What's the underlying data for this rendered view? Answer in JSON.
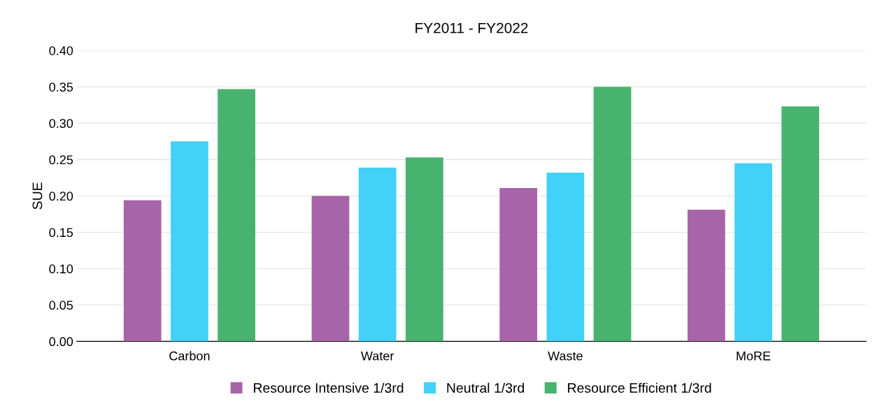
{
  "chart_data": {
    "type": "bar",
    "title": "FY2011 - FY2022",
    "ylabel": "SUE",
    "categories": [
      "Carbon",
      "Water",
      "Waste",
      "MoRE"
    ],
    "series": [
      {
        "name": "Resource Intensive 1/3rd",
        "color": "#a864a8",
        "values": [
          0.194,
          0.2,
          0.211,
          0.181
        ]
      },
      {
        "name": "Neutral 1/3rd",
        "color": "#41d1f9",
        "values": [
          0.275,
          0.239,
          0.232,
          0.245
        ]
      },
      {
        "name": "Resource Efficient 1/3rd",
        "color": "#47b36e",
        "values": [
          0.347,
          0.253,
          0.35,
          0.323
        ]
      }
    ],
    "ylim": [
      0,
      0.4
    ],
    "yticks": [
      {
        "value": 0,
        "label": "0.00"
      },
      {
        "value": 0.05,
        "label": "0.05"
      },
      {
        "value": 0.1,
        "label": "0.10"
      },
      {
        "value": 0.15,
        "label": "0.15"
      },
      {
        "value": 0.2,
        "label": "0.20"
      },
      {
        "value": 0.25,
        "label": "0.25"
      },
      {
        "value": 0.3,
        "label": "0.30"
      },
      {
        "value": 0.35,
        "label": "0.35"
      },
      {
        "value": 0.4,
        "label": "0.40"
      }
    ],
    "grid": "y",
    "legend": "bottom"
  }
}
